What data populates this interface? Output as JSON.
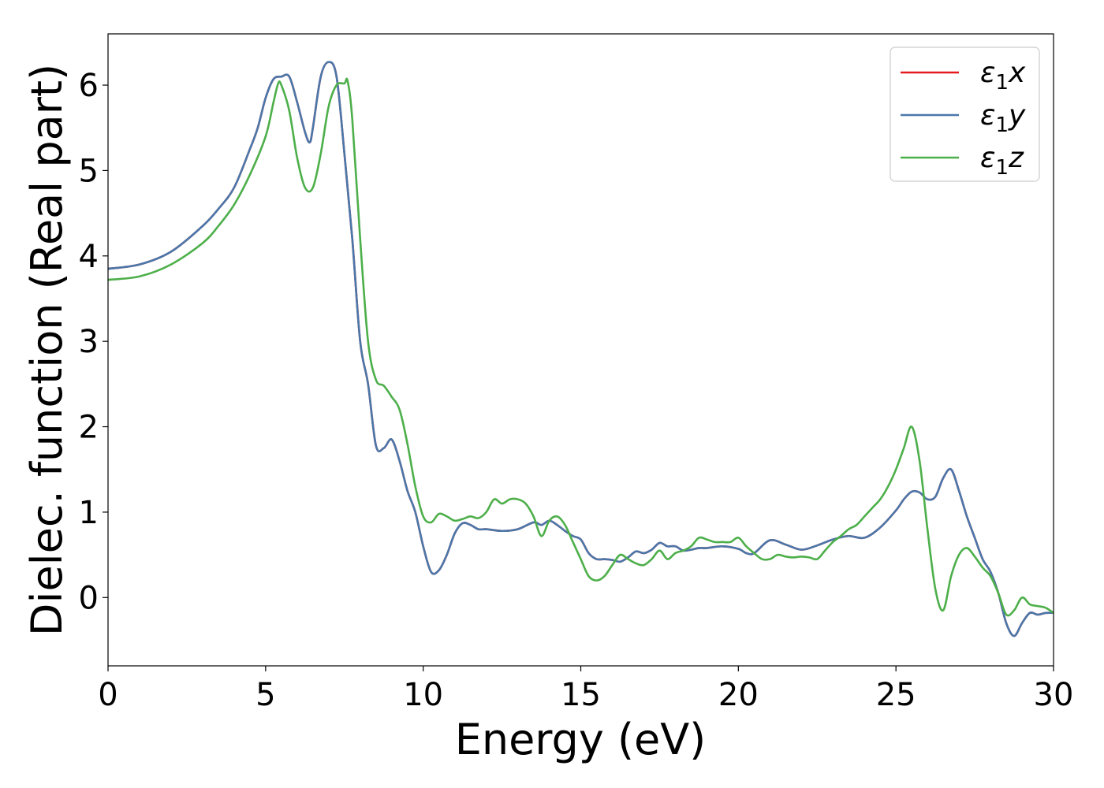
{
  "chart_data": {
    "type": "line",
    "xlabel": "Energy (eV)",
    "ylabel": "Dielec. function (Real part)",
    "xlim": [
      0,
      30
    ],
    "ylim": [
      -0.8,
      6.6
    ],
    "xticks": [
      "0",
      "5",
      "10",
      "15",
      "20",
      "25",
      "30"
    ],
    "yticks": [
      "0",
      "1",
      "2",
      "3",
      "4",
      "5",
      "6"
    ],
    "xtick_values": [
      0,
      5,
      10,
      15,
      20,
      25,
      30
    ],
    "ytick_values": [
      0,
      1,
      2,
      3,
      4,
      5,
      6
    ],
    "grid": false,
    "legend_position": "top-right",
    "series": [
      {
        "name": "ε₁x",
        "legend_base": "ε",
        "legend_sub": "1",
        "legend_var": "x",
        "color": "#e41a1c",
        "x": [
          0,
          1,
          2,
          3,
          3.5,
          4,
          4.5,
          4.75,
          5,
          5.25,
          5.5,
          5.75,
          6,
          6.25,
          6.4,
          6.5,
          6.75,
          7,
          7.25,
          7.5,
          7.75,
          8,
          8.25,
          8.5,
          8.75,
          9,
          9.25,
          9.5,
          9.75,
          10,
          10.25,
          10.5,
          10.75,
          11,
          11.25,
          11.5,
          11.75,
          12,
          12.5,
          13,
          13.5,
          13.75,
          14,
          14.25,
          14.5,
          14.75,
          15,
          15.25,
          15.5,
          15.75,
          16,
          16.25,
          16.5,
          16.75,
          17,
          17.25,
          17.5,
          17.75,
          18,
          18.25,
          18.5,
          18.75,
          19,
          19.5,
          20,
          20.25,
          20.5,
          21,
          21.5,
          22,
          22.5,
          23,
          23.5,
          24,
          24.5,
          25,
          25.25,
          25.5,
          25.75,
          26,
          26.25,
          26.5,
          26.75,
          27,
          27.25,
          27.5,
          27.75,
          28,
          28.25,
          28.5,
          28.75,
          29,
          29.25,
          29.5,
          29.75,
          30
        ],
        "y": [
          3.85,
          3.9,
          4.05,
          4.35,
          4.55,
          4.8,
          5.25,
          5.5,
          5.85,
          6.07,
          6.1,
          6.1,
          5.8,
          5.45,
          5.33,
          5.5,
          6.1,
          6.27,
          6.1,
          5.2,
          4.2,
          3.0,
          2.5,
          1.78,
          1.75,
          1.85,
          1.6,
          1.25,
          1.0,
          0.6,
          0.3,
          0.32,
          0.5,
          0.75,
          0.87,
          0.85,
          0.8,
          0.8,
          0.78,
          0.8,
          0.88,
          0.85,
          0.9,
          0.85,
          0.78,
          0.72,
          0.68,
          0.52,
          0.45,
          0.45,
          0.44,
          0.42,
          0.47,
          0.54,
          0.52,
          0.56,
          0.64,
          0.6,
          0.6,
          0.55,
          0.56,
          0.58,
          0.58,
          0.6,
          0.57,
          0.52,
          0.52,
          0.67,
          0.62,
          0.56,
          0.61,
          0.68,
          0.72,
          0.7,
          0.82,
          1.02,
          1.15,
          1.24,
          1.23,
          1.15,
          1.18,
          1.4,
          1.5,
          1.25,
          0.95,
          0.7,
          0.45,
          0.3,
          0.05,
          -0.3,
          -0.45,
          -0.3,
          -0.18,
          -0.2,
          -0.18,
          -0.18
        ]
      },
      {
        "name": "ε₁y",
        "legend_base": "ε",
        "legend_sub": "1",
        "legend_var": "y",
        "color": "#4a77aa",
        "x": [
          0,
          1,
          2,
          3,
          3.5,
          4,
          4.5,
          4.75,
          5,
          5.25,
          5.5,
          5.75,
          6,
          6.25,
          6.4,
          6.5,
          6.75,
          7,
          7.25,
          7.5,
          7.75,
          8,
          8.25,
          8.5,
          8.75,
          9,
          9.25,
          9.5,
          9.75,
          10,
          10.25,
          10.5,
          10.75,
          11,
          11.25,
          11.5,
          11.75,
          12,
          12.5,
          13,
          13.5,
          13.75,
          14,
          14.25,
          14.5,
          14.75,
          15,
          15.25,
          15.5,
          15.75,
          16,
          16.25,
          16.5,
          16.75,
          17,
          17.25,
          17.5,
          17.75,
          18,
          18.25,
          18.5,
          18.75,
          19,
          19.5,
          20,
          20.25,
          20.5,
          21,
          21.5,
          22,
          22.5,
          23,
          23.5,
          24,
          24.5,
          25,
          25.25,
          25.5,
          25.75,
          26,
          26.25,
          26.5,
          26.75,
          27,
          27.25,
          27.5,
          27.75,
          28,
          28.25,
          28.5,
          28.75,
          29,
          29.25,
          29.5,
          29.75,
          30
        ],
        "y": [
          3.85,
          3.9,
          4.05,
          4.35,
          4.55,
          4.8,
          5.25,
          5.5,
          5.85,
          6.07,
          6.1,
          6.1,
          5.8,
          5.45,
          5.33,
          5.5,
          6.1,
          6.27,
          6.1,
          5.2,
          4.2,
          3.0,
          2.5,
          1.78,
          1.75,
          1.85,
          1.6,
          1.25,
          1.0,
          0.6,
          0.3,
          0.32,
          0.5,
          0.75,
          0.87,
          0.85,
          0.8,
          0.8,
          0.78,
          0.8,
          0.88,
          0.85,
          0.9,
          0.85,
          0.78,
          0.72,
          0.68,
          0.52,
          0.45,
          0.45,
          0.44,
          0.42,
          0.47,
          0.54,
          0.52,
          0.56,
          0.64,
          0.6,
          0.6,
          0.55,
          0.56,
          0.58,
          0.58,
          0.6,
          0.57,
          0.52,
          0.52,
          0.67,
          0.62,
          0.56,
          0.61,
          0.68,
          0.72,
          0.7,
          0.82,
          1.02,
          1.15,
          1.24,
          1.23,
          1.15,
          1.18,
          1.4,
          1.5,
          1.25,
          0.95,
          0.7,
          0.45,
          0.3,
          0.05,
          -0.3,
          -0.45,
          -0.3,
          -0.18,
          -0.2,
          -0.18,
          -0.18
        ]
      },
      {
        "name": "ε₁z",
        "legend_base": "ε",
        "legend_sub": "1",
        "legend_var": "z",
        "color": "#4daf4a",
        "x": [
          0,
          1,
          2,
          3,
          3.5,
          4,
          4.5,
          5,
          5.25,
          5.4,
          5.5,
          5.75,
          6,
          6.25,
          6.5,
          6.75,
          7,
          7.25,
          7.5,
          7.6,
          7.75,
          8,
          8.25,
          8.5,
          8.75,
          9,
          9.25,
          9.5,
          9.75,
          10,
          10.25,
          10.5,
          10.75,
          11,
          11.25,
          11.5,
          11.75,
          12,
          12.25,
          12.5,
          12.75,
          13,
          13.25,
          13.5,
          13.75,
          14,
          14.25,
          14.5,
          14.75,
          15,
          15.25,
          15.5,
          15.75,
          16,
          16.25,
          16.5,
          16.75,
          17,
          17.25,
          17.5,
          17.75,
          18,
          18.25,
          18.5,
          18.75,
          19,
          19.25,
          19.5,
          19.75,
          20,
          20.25,
          20.5,
          20.75,
          21,
          21.25,
          21.5,
          21.75,
          22,
          22.25,
          22.5,
          22.75,
          23,
          23.25,
          23.5,
          23.75,
          24,
          24.25,
          24.5,
          24.75,
          25,
          25.25,
          25.5,
          25.75,
          26,
          26.25,
          26.5,
          26.75,
          27,
          27.25,
          27.5,
          27.75,
          28,
          28.25,
          28.5,
          28.75,
          29,
          29.25,
          29.5,
          29.75,
          30
        ],
        "y": [
          3.72,
          3.76,
          3.9,
          4.15,
          4.35,
          4.6,
          4.95,
          5.4,
          5.8,
          6.02,
          6.0,
          5.7,
          5.15,
          4.8,
          4.8,
          5.2,
          5.75,
          6.0,
          6.02,
          6.05,
          5.6,
          4.2,
          3.0,
          2.55,
          2.48,
          2.35,
          2.2,
          1.8,
          1.3,
          0.95,
          0.88,
          0.98,
          0.95,
          0.9,
          0.92,
          0.95,
          0.93,
          1.0,
          1.15,
          1.1,
          1.15,
          1.15,
          1.1,
          0.95,
          0.72,
          0.9,
          0.95,
          0.85,
          0.65,
          0.45,
          0.25,
          0.2,
          0.25,
          0.38,
          0.5,
          0.45,
          0.4,
          0.38,
          0.45,
          0.55,
          0.45,
          0.52,
          0.55,
          0.6,
          0.7,
          0.68,
          0.65,
          0.65,
          0.65,
          0.7,
          0.6,
          0.52,
          0.45,
          0.45,
          0.5,
          0.48,
          0.47,
          0.48,
          0.47,
          0.45,
          0.55,
          0.65,
          0.72,
          0.8,
          0.85,
          0.95,
          1.05,
          1.15,
          1.3,
          1.5,
          1.75,
          2.0,
          1.6,
          0.8,
          0.1,
          -0.15,
          0.25,
          0.5,
          0.58,
          0.48,
          0.35,
          0.25,
          0.05,
          -0.2,
          -0.15,
          0.0,
          -0.08,
          -0.1,
          -0.12,
          -0.18
        ]
      }
    ]
  }
}
